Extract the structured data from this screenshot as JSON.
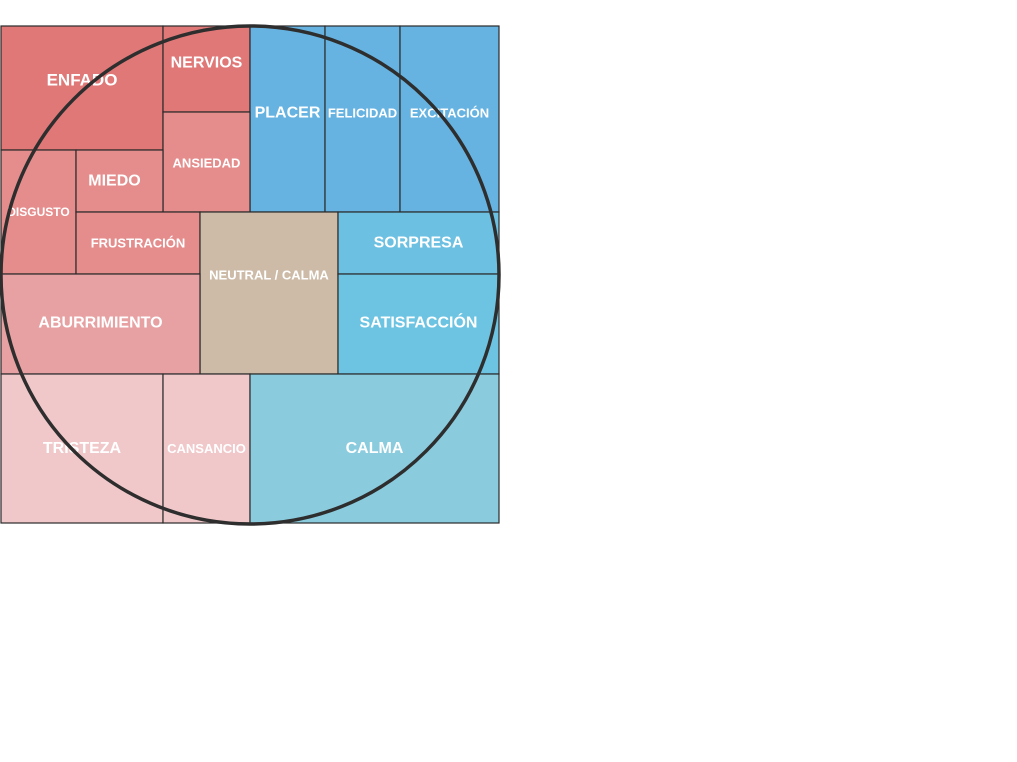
{
  "diagram": {
    "cells": [
      {
        "id": "enfado",
        "label": "ENFADO",
        "color": "#e07878"
      },
      {
        "id": "nervios",
        "label": "NERVIOS",
        "color": "#e07878"
      },
      {
        "id": "placer",
        "label": "PLACER",
        "color": "#66b3e1"
      },
      {
        "id": "felicidad",
        "label": "FELICIDAD",
        "color": "#66b3e1"
      },
      {
        "id": "excitacion",
        "label": "EXCITACIÓN",
        "color": "#66b3e1"
      },
      {
        "id": "ansiedad",
        "label": "ANSIEDAD",
        "color": "#e58d8d"
      },
      {
        "id": "disgusto",
        "label": "DISGUSTO",
        "color": "#e58d8d"
      },
      {
        "id": "miedo",
        "label": "MIEDO",
        "color": "#e58d8d"
      },
      {
        "id": "frustracion",
        "label": "FRUSTRACIÓN",
        "color": "#e58d8d"
      },
      {
        "id": "neutral",
        "label": "NEUTRAL / CALMA",
        "color": "#cdbba8"
      },
      {
        "id": "sorpresa",
        "label": "SORPRESA",
        "color": "#6cc0e2"
      },
      {
        "id": "aburrimiento",
        "label": "ABURRIMIENTO",
        "color": "#e7a1a3"
      },
      {
        "id": "satisfaccion",
        "label": "SATISFACCIÓN",
        "color": "#6cc4e2"
      },
      {
        "id": "tristeza",
        "label": "TRISTEZA",
        "color": "#f0c8ca"
      },
      {
        "id": "cansancio",
        "label": "CANSANCIO",
        "color": "#f0c8ca"
      },
      {
        "id": "calma",
        "label": "CALMA",
        "color": "#8acbde"
      }
    ]
  }
}
